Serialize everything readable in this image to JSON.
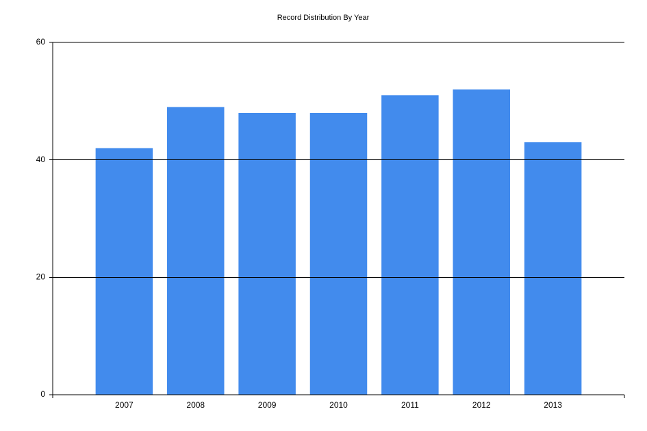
{
  "chart_data": {
    "type": "bar",
    "title": "Record Distribution By Year",
    "categories": [
      "2007",
      "2008",
      "2009",
      "2010",
      "2011",
      "2012",
      "2013"
    ],
    "values": [
      42,
      49,
      48,
      48,
      51,
      52,
      43
    ],
    "color": "#428bed",
    "ylim": [
      0,
      60
    ],
    "yticks": [
      0,
      20,
      40,
      60
    ],
    "grid": true
  }
}
